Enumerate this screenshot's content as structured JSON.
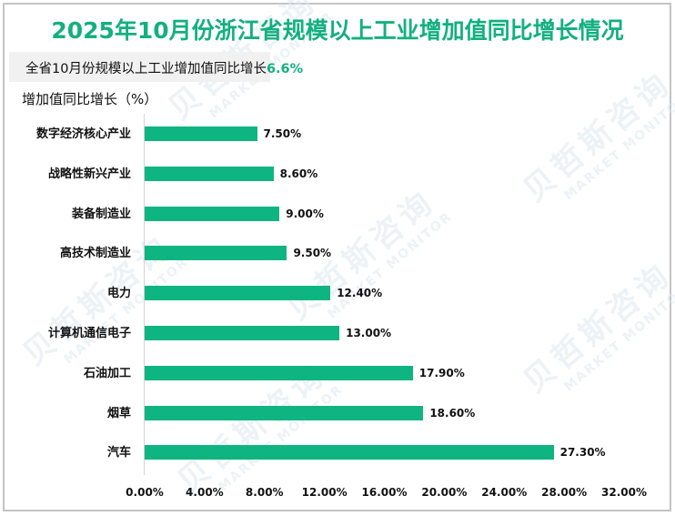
{
  "title": "2025年10月份浙江省规模以上工业增加值同比增长情况",
  "summary": {
    "text": "全省10月份规模以上工业增加值同比增长",
    "value": "6.6%"
  },
  "watermark": {
    "cn": "贝哲斯咨询",
    "en": "MARKET MONITOR"
  },
  "colors": {
    "accent": "#13b07f",
    "bar": "#0fb581",
    "summary_bg": "#f1f1f1",
    "border": "#c4c4c4"
  },
  "chart_data": {
    "type": "bar",
    "orientation": "horizontal",
    "title": "2025年10月份浙江省规模以上工业增加值同比增长情况",
    "subtitle": "全省10月份规模以上工业增加值同比增长6.6%",
    "ylabel": "增加值同比增长（%）",
    "xlabel": "",
    "categories": [
      "数字经济核心产业",
      "战略性新兴产业",
      "装备制造业",
      "高技术制造业",
      "电力",
      "计算机通信电子",
      "石油加工",
      "烟草",
      "汽车"
    ],
    "values": [
      7.5,
      8.6,
      9.0,
      9.5,
      12.4,
      13.0,
      17.9,
      18.6,
      27.3
    ],
    "value_labels": [
      "7.50%",
      "8.60%",
      "9.00%",
      "9.50%",
      "12.40%",
      "13.00%",
      "17.90%",
      "18.60%",
      "27.30%"
    ],
    "xlim": [
      0,
      32
    ],
    "x_ticks": [
      "0.00%",
      "4.00%",
      "8.00%",
      "12.00%",
      "16.00%",
      "20.00%",
      "24.00%",
      "28.00%",
      "32.00%"
    ],
    "grid": false,
    "legend": null
  }
}
